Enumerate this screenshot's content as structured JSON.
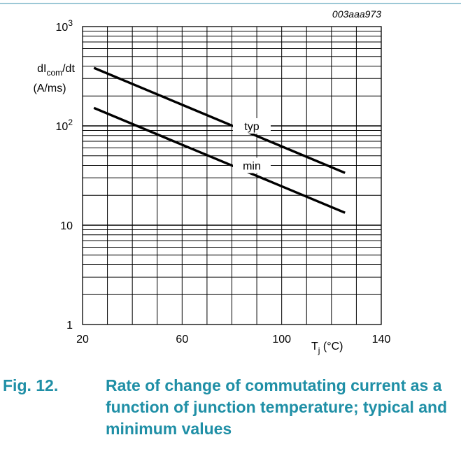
{
  "chart_data": {
    "type": "line",
    "id_code": "003aaa973",
    "ylabel_main": "dI",
    "ylabel_sub": "com",
    "ylabel_suffix": "/dt",
    "ylabel_unit": "(A/ms)",
    "xlabel_main": "T",
    "xlabel_sub": "j",
    "xlabel_unit": " (°C)",
    "xscale": "linear",
    "yscale": "log",
    "xlim": [
      20,
      140
    ],
    "ylim": [
      1,
      1000
    ],
    "x_ticks": [
      {
        "value": 20,
        "label": "20"
      },
      {
        "value": 60,
        "label": "60"
      },
      {
        "value": 100,
        "label": "100"
      },
      {
        "value": 140,
        "label": "140"
      }
    ],
    "y_ticks": [
      {
        "value": 1,
        "label": "1",
        "exp": ""
      },
      {
        "value": 10,
        "label": "10",
        "exp": ""
      },
      {
        "value": 100,
        "label": "10",
        "exp": "2"
      },
      {
        "value": 1000,
        "label": "10",
        "exp": "3"
      }
    ],
    "grid": true,
    "series": [
      {
        "name": "typ",
        "x": [
          25,
          125
        ],
        "y": [
          380,
          34
        ]
      },
      {
        "name": "min",
        "x": [
          25,
          125
        ],
        "y": [
          150,
          13.5
        ]
      }
    ]
  },
  "caption": {
    "number": "Fig. 12.",
    "text": "Rate of change of commutating current as a function of junction temperature; typical and minimum values"
  }
}
